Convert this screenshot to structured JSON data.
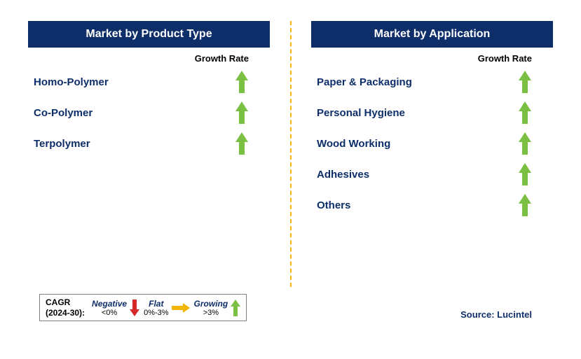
{
  "colors": {
    "header_bg": "#0d2e69",
    "text_dark_blue": "#0d2e69",
    "growing_green": "#7bc043",
    "flat_yellow": "#f4b400",
    "negative_red": "#d62828",
    "divider_yellow": "#f4b400",
    "source_blue": "#0d2e69"
  },
  "left_panel": {
    "title": "Market by Product Type",
    "growth_label": "Growth Rate",
    "rows": [
      {
        "label": "Homo-Polymer",
        "trend": "growing"
      },
      {
        "label": "Co-Polymer",
        "trend": "growing"
      },
      {
        "label": "Terpolymer",
        "trend": "growing"
      }
    ]
  },
  "right_panel": {
    "title": "Market by Application",
    "growth_label": "Growth Rate",
    "rows": [
      {
        "label": "Paper & Packaging",
        "trend": "growing"
      },
      {
        "label": "Personal Hygiene",
        "trend": "growing"
      },
      {
        "label": "Wood Working",
        "trend": "growing"
      },
      {
        "label": "Adhesives",
        "trend": "growing"
      },
      {
        "label": "Others",
        "trend": "growing"
      }
    ]
  },
  "legend": {
    "title_line1": "CAGR",
    "title_line2": "(2024-30):",
    "items": [
      {
        "label": "Negative",
        "range": "<0%",
        "type": "negative"
      },
      {
        "label": "Flat",
        "range": "0%-3%",
        "type": "flat"
      },
      {
        "label": "Growing",
        "range": ">3%",
        "type": "growing"
      }
    ]
  },
  "source": "Source: Lucintel"
}
